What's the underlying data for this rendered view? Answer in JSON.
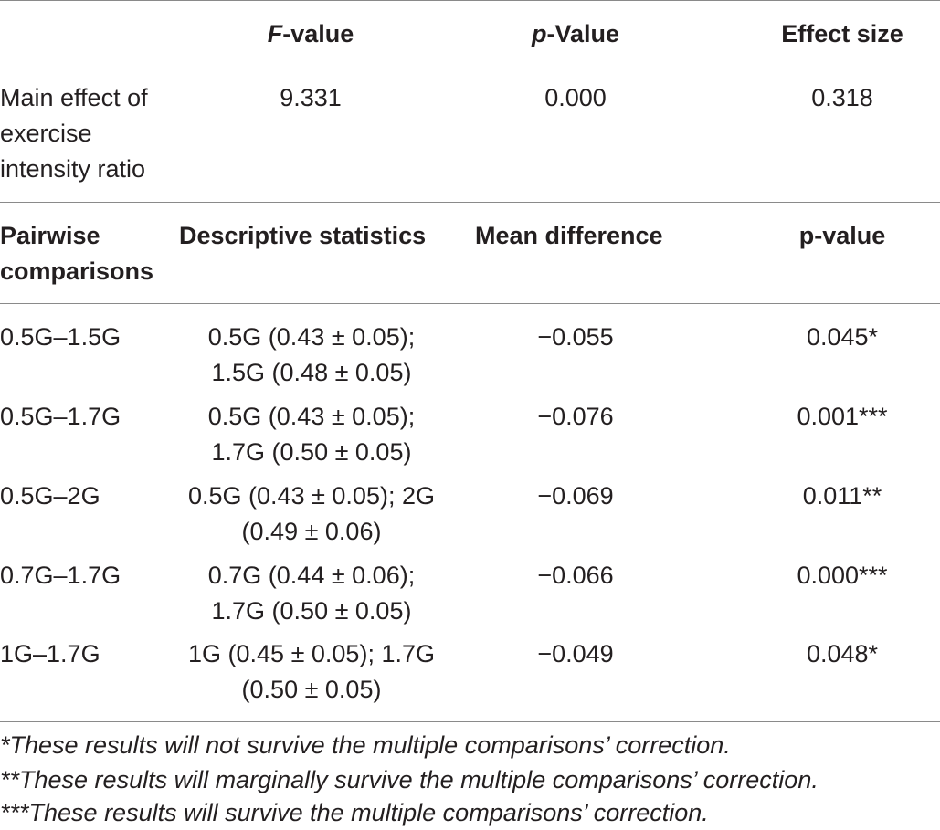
{
  "header": {
    "f_value_italic": "F",
    "f_value_rest": "-value",
    "p_value_italic": "p",
    "p_value_rest": "-Value",
    "effect_size": "Effect size"
  },
  "main_effect": {
    "label_line1": "Main effect of",
    "label_line2": "exercise",
    "label_line3": "intensity ratio",
    "f_value": "9.331",
    "p_value": "0.000",
    "effect_size": "0.318"
  },
  "pairwise_header": {
    "col1_line1": "Pairwise",
    "col1_line2": "comparisons",
    "col2": "Descriptive statistics",
    "col3": "Mean difference",
    "col4": "p-value"
  },
  "rows": [
    {
      "comparison": "0.5G–1.5G",
      "desc_line1": "0.5G (0.43 ± 0.05);",
      "desc_line2": "1.5G (0.48 ± 0.05)",
      "mean_diff": "−0.055",
      "p_value": "0.045*"
    },
    {
      "comparison": "0.5G–1.7G",
      "desc_line1": "0.5G (0.43 ± 0.05);",
      "desc_line2": "1.7G (0.50 ± 0.05)",
      "mean_diff": "−0.076",
      "p_value": "0.001***"
    },
    {
      "comparison": "0.5G–2G",
      "desc_line1": "0.5G (0.43 ± 0.05); 2G",
      "desc_line2": "(0.49 ± 0.06)",
      "mean_diff": "−0.069",
      "p_value": "0.011**"
    },
    {
      "comparison": "0.7G–1.7G",
      "desc_line1": "0.7G (0.44 ± 0.06);",
      "desc_line2": "1.7G (0.50 ± 0.05)",
      "mean_diff": "−0.066",
      "p_value": "0.000***"
    },
    {
      "comparison": "1G–1.7G",
      "desc_line1": "1G (0.45 ± 0.05); 1.7G",
      "desc_line2": "(0.50 ± 0.05)",
      "mean_diff": "−0.049",
      "p_value": "0.048*"
    }
  ],
  "footnotes": [
    "*These results will not survive the multiple comparisons’ correction.",
    "**These results will marginally survive the multiple comparisons’ correction.",
    "***These results will survive the multiple comparisons’ correction."
  ]
}
